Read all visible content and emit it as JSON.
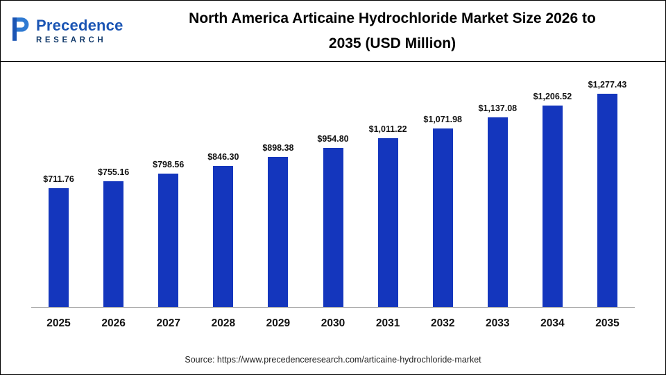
{
  "header": {
    "brand": {
      "name": "Precedence",
      "subtitle": "RESEARCH"
    },
    "title_line1": "North America Articaine Hydrochloride Market Size 2026 to",
    "title_line2": "2035 (USD Million)"
  },
  "chart_data": {
    "type": "bar",
    "title": "North America Articaine Hydrochloride Market Size 2026 to 2035 (USD Million)",
    "categories": [
      "2025",
      "2026",
      "2027",
      "2028",
      "2029",
      "2030",
      "2031",
      "2032",
      "2033",
      "2034",
      "2035"
    ],
    "values": [
      711.76,
      755.16,
      798.56,
      846.3,
      898.38,
      954.8,
      1011.22,
      1071.98,
      1137.08,
      1206.52,
      1277.43
    ],
    "value_labels": [
      "$711.76",
      "$755.16",
      "$798.56",
      "$846.30",
      "$898.38",
      "$954.80",
      "$1,011.22",
      "$1,071.98",
      "$1,137.08",
      "$1,206.52",
      "$1,277.43"
    ],
    "xlabel": "",
    "ylabel": "",
    "ylim": [
      0,
      1300
    ],
    "grid": false,
    "legend": false,
    "bar_color": "#1436bd"
  },
  "colors": {
    "bar": "#1436bd",
    "brand_blue": "#1b55b4",
    "brand_dark": "#123a6b"
  },
  "footer": {
    "source": "Source: https://www.precedenceresearch.com/articaine-hydrochloride-market"
  }
}
